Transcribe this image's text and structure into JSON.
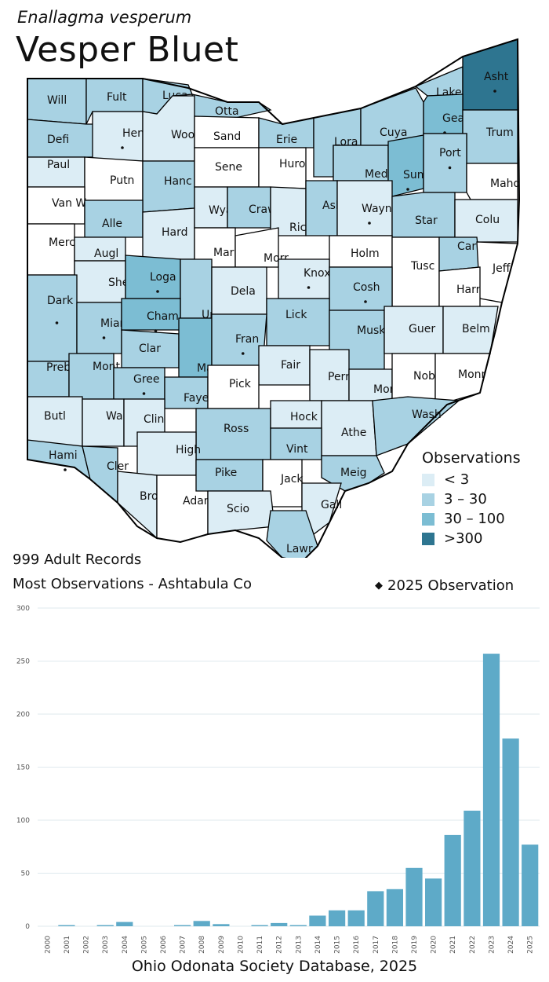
{
  "header": {
    "scientific_name": "Enallagma vesperum",
    "common_name": "Vesper Bluet"
  },
  "stats": {
    "records": "999 Adult Records",
    "most_observations": "Most Observations - Ashtabula Co",
    "marker_legend": "2025  Observation"
  },
  "legend": {
    "title": "Observations",
    "items": [
      {
        "label": "< 3",
        "color": "#dcedf5"
      },
      {
        "label": "3 – 30",
        "color": "#a8d2e3"
      },
      {
        "label": "30 – 100",
        "color": "#7cbdd3"
      },
      {
        "label": ">300",
        "color": "#2e7590"
      }
    ]
  },
  "counties": [
    {
      "abbr": "Will",
      "cls": 2,
      "dot": false
    },
    {
      "abbr": "Fult",
      "cls": 2,
      "dot": false
    },
    {
      "abbr": "Luca",
      "cls": 2,
      "dot": true
    },
    {
      "abbr": "Otta",
      "cls": 2,
      "dot": true
    },
    {
      "abbr": "Lake",
      "cls": 2,
      "dot": false
    },
    {
      "abbr": "Asht",
      "cls": 4,
      "dot": true
    },
    {
      "abbr": "Defi",
      "cls": 2,
      "dot": false
    },
    {
      "abbr": "Henr",
      "cls": 1,
      "dot": true
    },
    {
      "abbr": "Wood",
      "cls": 1,
      "dot": false
    },
    {
      "abbr": "Sand",
      "cls": 0,
      "dot": false
    },
    {
      "abbr": "Erie",
      "cls": 2,
      "dot": false
    },
    {
      "abbr": "Lora",
      "cls": 2,
      "dot": true
    },
    {
      "abbr": "Cuya",
      "cls": 2,
      "dot": true
    },
    {
      "abbr": "Geau",
      "cls": 3,
      "dot": true
    },
    {
      "abbr": "Trum",
      "cls": 2,
      "dot": false
    },
    {
      "abbr": "Paul",
      "cls": 1,
      "dot": false
    },
    {
      "abbr": "Putn",
      "cls": 0,
      "dot": false
    },
    {
      "abbr": "Hanc",
      "cls": 2,
      "dot": false
    },
    {
      "abbr": "Sene",
      "cls": 0,
      "dot": false
    },
    {
      "abbr": "Huro",
      "cls": 0,
      "dot": false
    },
    {
      "abbr": "Medi",
      "cls": 2,
      "dot": false
    },
    {
      "abbr": "Summ",
      "cls": 3,
      "dot": true
    },
    {
      "abbr": "Port",
      "cls": 2,
      "dot": true
    },
    {
      "abbr": "Maho",
      "cls": 0,
      "dot": false
    },
    {
      "abbr": "Van W",
      "cls": 0,
      "dot": false
    },
    {
      "abbr": "Alle",
      "cls": 2,
      "dot": false
    },
    {
      "abbr": "Hard",
      "cls": 1,
      "dot": false
    },
    {
      "abbr": "Wyan",
      "cls": 1,
      "dot": false
    },
    {
      "abbr": "Craw",
      "cls": 2,
      "dot": false
    },
    {
      "abbr": "Rich",
      "cls": 1,
      "dot": false
    },
    {
      "abbr": "Ashl",
      "cls": 2,
      "dot": false
    },
    {
      "abbr": "Wayn",
      "cls": 1,
      "dot": true
    },
    {
      "abbr": "Star",
      "cls": 2,
      "dot": false
    },
    {
      "abbr": "Colu",
      "cls": 1,
      "dot": false
    },
    {
      "abbr": "Merc",
      "cls": 0,
      "dot": false
    },
    {
      "abbr": "Augl",
      "cls": 1,
      "dot": false
    },
    {
      "abbr": "Mari",
      "cls": 0,
      "dot": false
    },
    {
      "abbr": "Morr",
      "cls": 0,
      "dot": false
    },
    {
      "abbr": "Holm",
      "cls": 0,
      "dot": false
    },
    {
      "abbr": "Tusc",
      "cls": 0,
      "dot": false
    },
    {
      "abbr": "Carr",
      "cls": 2,
      "dot": false
    },
    {
      "abbr": "Jeff",
      "cls": 0,
      "dot": false
    },
    {
      "abbr": "Shel",
      "cls": 1,
      "dot": false
    },
    {
      "abbr": "Loga",
      "cls": 3,
      "dot": true
    },
    {
      "abbr": "Unio",
      "cls": 2,
      "dot": false
    },
    {
      "abbr": "Dela",
      "cls": 1,
      "dot": false
    },
    {
      "abbr": "Knox",
      "cls": 1,
      "dot": true
    },
    {
      "abbr": "Cosh",
      "cls": 2,
      "dot": true
    },
    {
      "abbr": "Harr",
      "cls": 0,
      "dot": false
    },
    {
      "abbr": "Dark",
      "cls": 2,
      "dot": true
    },
    {
      "abbr": "Miam",
      "cls": 2,
      "dot": true
    },
    {
      "abbr": "Cham",
      "cls": 3,
      "dot": true
    },
    {
      "abbr": "Lick",
      "cls": 2,
      "dot": false
    },
    {
      "abbr": "Musk",
      "cls": 2,
      "dot": false
    },
    {
      "abbr": "Guer",
      "cls": 1,
      "dot": false
    },
    {
      "abbr": "Belm",
      "cls": 1,
      "dot": false
    },
    {
      "abbr": "Clar",
      "cls": 2,
      "dot": false
    },
    {
      "abbr": "Madi",
      "cls": 3,
      "dot": true
    },
    {
      "abbr": "Fran",
      "cls": 2,
      "dot": true
    },
    {
      "abbr": "Preb",
      "cls": 2,
      "dot": false
    },
    {
      "abbr": "Mont",
      "cls": 2,
      "dot": false
    },
    {
      "abbr": "Gree",
      "cls": 2,
      "dot": true
    },
    {
      "abbr": "Fair",
      "cls": 1,
      "dot": false
    },
    {
      "abbr": "Perr",
      "cls": 1,
      "dot": false
    },
    {
      "abbr": "Morg",
      "cls": 1,
      "dot": false
    },
    {
      "abbr": "Nobl",
      "cls": 0,
      "dot": false
    },
    {
      "abbr": "Monr",
      "cls": 0,
      "dot": false
    },
    {
      "abbr": "Faye",
      "cls": 2,
      "dot": false
    },
    {
      "abbr": "Pick",
      "cls": 0,
      "dot": false
    },
    {
      "abbr": "Butl",
      "cls": 1,
      "dot": false
    },
    {
      "abbr": "Warr",
      "cls": 1,
      "dot": false
    },
    {
      "abbr": "Clin",
      "cls": 1,
      "dot": false
    },
    {
      "abbr": "Ross",
      "cls": 2,
      "dot": false
    },
    {
      "abbr": "Hock",
      "cls": 1,
      "dot": false
    },
    {
      "abbr": "Athe",
      "cls": 1,
      "dot": false
    },
    {
      "abbr": "Wash",
      "cls": 2,
      "dot": false
    },
    {
      "abbr": "Hami",
      "cls": 2,
      "dot": true
    },
    {
      "abbr": "Cler",
      "cls": 2,
      "dot": false
    },
    {
      "abbr": "High",
      "cls": 1,
      "dot": false
    },
    {
      "abbr": "Vint",
      "cls": 2,
      "dot": false
    },
    {
      "abbr": "Meig",
      "cls": 2,
      "dot": false
    },
    {
      "abbr": "Brow",
      "cls": 1,
      "dot": false
    },
    {
      "abbr": "Adam",
      "cls": 0,
      "dot": false
    },
    {
      "abbr": "Pike",
      "cls": 2,
      "dot": false
    },
    {
      "abbr": "Jack",
      "cls": 0,
      "dot": false
    },
    {
      "abbr": "Gall",
      "cls": 1,
      "dot": false
    },
    {
      "abbr": "Scio",
      "cls": 1,
      "dot": false
    },
    {
      "abbr": "Lawr",
      "cls": 2,
      "dot": false
    }
  ],
  "chart_data": {
    "type": "bar",
    "categories": [
      "2000",
      "2001",
      "2002",
      "2003",
      "2004",
      "2005",
      "2006",
      "2007",
      "2008",
      "2009",
      "2010",
      "2011",
      "2012",
      "2013",
      "2014",
      "2015",
      "2016",
      "2017",
      "2018",
      "2019",
      "2020",
      "2021",
      "2022",
      "2023",
      "2024",
      "2025"
    ],
    "values": [
      0,
      1,
      0,
      1,
      4,
      0,
      0,
      1,
      5,
      2,
      0,
      1,
      3,
      1,
      10,
      15,
      15,
      33,
      35,
      55,
      45,
      86,
      109,
      257,
      177,
      77
    ],
    "ylim": [
      0,
      300
    ],
    "yticks": [
      0,
      50,
      100,
      150,
      200,
      250,
      300
    ],
    "grid": true,
    "bar_color": "#5eaac8",
    "title": "",
    "xlabel": "",
    "ylabel": ""
  },
  "footer": {
    "source": "Ohio Odonata Society Database, 2025"
  }
}
